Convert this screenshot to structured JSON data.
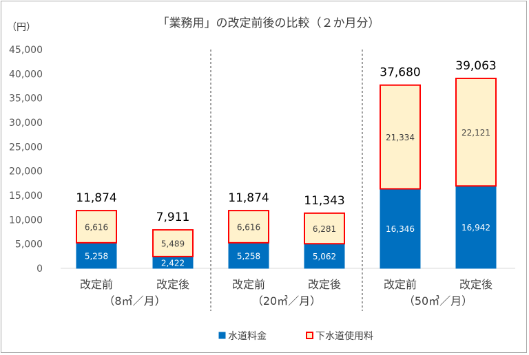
{
  "chart_data": {
    "type": "bar",
    "stacked": true,
    "title": "「業務用」の改定前後の比較（２か月分）",
    "y_unit": "（円）",
    "ylim": [
      0,
      45000
    ],
    "ytick_step": 5000,
    "ytick_labels": [
      "0",
      "5,000",
      "10,000",
      "15,000",
      "20,000",
      "25,000",
      "30,000",
      "35,000",
      "40,000",
      "45,000"
    ],
    "categories": [
      "改定前",
      "改定後",
      "改定前",
      "改定後",
      "改定前",
      "改定後"
    ],
    "groups": [
      "（8㎥／月）",
      "（20㎥／月）",
      "（50㎥／月）"
    ],
    "series": [
      {
        "name": "水道料金",
        "values": [
          5258,
          2422,
          5258,
          5062,
          16346,
          16942
        ],
        "labels": [
          "5,258",
          "2,422",
          "5,258",
          "5,062",
          "16,346",
          "16,942"
        ],
        "fill": "#0070c0",
        "stroke": "#0070c0",
        "label_color": "#ffffff"
      },
      {
        "name": "下水道使用料",
        "values": [
          6616,
          5489,
          6616,
          6281,
          21334,
          22121
        ],
        "labels": [
          "6,616",
          "5,489",
          "6,616",
          "6,281",
          "21,334",
          "22,121"
        ],
        "fill": "#fff2cc",
        "stroke": "#ff0000",
        "label_color": "#404040"
      }
    ],
    "totals": [
      11874,
      7911,
      11874,
      11343,
      37680,
      39063
    ],
    "total_labels": [
      "11,874",
      "7,911",
      "11,874",
      "11,343",
      "37,680",
      "39,063"
    ],
    "grid": false,
    "legend_position": "bottom-center",
    "group_separators": "dashed"
  }
}
